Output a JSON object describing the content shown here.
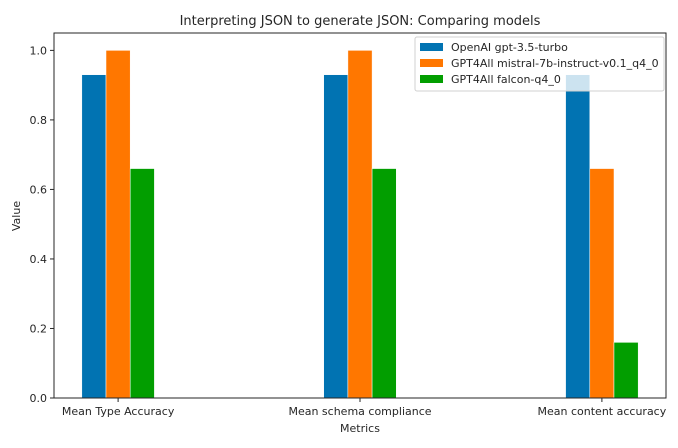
{
  "chart_data": {
    "type": "bar",
    "title": "Interpreting JSON to generate JSON: Comparing models",
    "xlabel": "Metrics",
    "ylabel": "Value",
    "categories": [
      "Mean Type Accuracy",
      "Mean schema compliance",
      "Mean content accuracy"
    ],
    "series": [
      {
        "name": "OpenAI gpt-3.5-turbo",
        "color": "#0173b2",
        "values": [
          0.93,
          0.93,
          0.93
        ]
      },
      {
        "name": "GPT4All mistral-7b-instruct-v0.1_q4_0",
        "color": "#ff7700",
        "values": [
          1.0,
          1.0,
          0.66
        ]
      },
      {
        "name": "GPT4All falcon-q4_0",
        "color": "#029e00",
        "values": [
          0.66,
          0.66,
          0.16
        ]
      }
    ],
    "ylim": [
      0,
      1.05
    ],
    "yticks": [
      "0.0",
      "0.2",
      "0.4",
      "0.6",
      "0.8",
      "1.0"
    ],
    "grid": false,
    "legend_position": "top-right"
  }
}
